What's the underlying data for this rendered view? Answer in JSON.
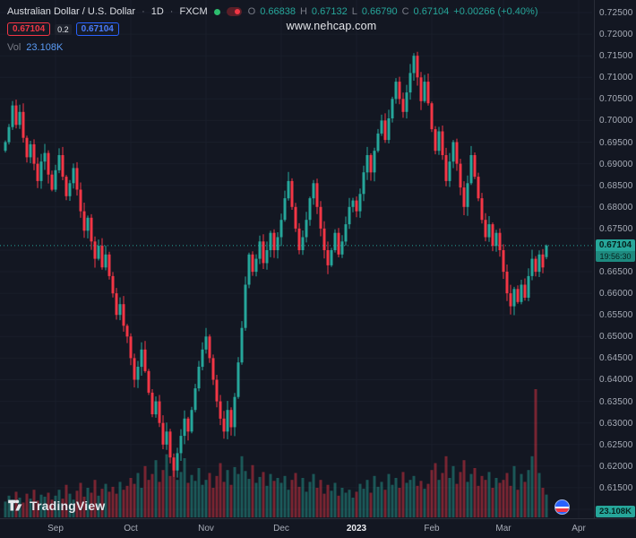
{
  "header": {
    "symbol_title": "Australian Dollar / U.S. Dollar",
    "separator": "·",
    "interval": "1D",
    "exchange": "FXCM",
    "ohlc": {
      "o_label": "O",
      "o": "0.66838",
      "h_label": "H",
      "h": "0.67132",
      "l_label": "L",
      "l": "0.66790",
      "c_label": "C",
      "c": "0.67104",
      "change": "+0.00266 (+0.40%)"
    },
    "sell_price": "0.67104",
    "spread": "0.2",
    "buy_price": "0.67104",
    "vol_label": "Vol",
    "vol_value": "23.108K"
  },
  "watermark": {
    "url_text": "www.nehcap.com"
  },
  "price_axis": {
    "labels": [
      "0.72500",
      "0.72000",
      "0.71500",
      "0.71000",
      "0.70500",
      "0.70000",
      "0.69500",
      "0.69000",
      "0.68500",
      "0.68000",
      "0.67500",
      "0.67000",
      "0.66500",
      "0.66000",
      "0.65500",
      "0.65000",
      "0.64500",
      "0.64000",
      "0.63500",
      "0.63000",
      "0.62500",
      "0.62000",
      "0.61500",
      "0.61000"
    ],
    "current_price": "0.67104",
    "countdown": "19:56:30",
    "volume_badge": "23.108K"
  },
  "time_axis": {
    "labels": [
      {
        "text": "Sep",
        "index": 14,
        "major": false
      },
      {
        "text": "Oct",
        "index": 35,
        "major": false
      },
      {
        "text": "Nov",
        "index": 56,
        "major": false
      },
      {
        "text": "Dec",
        "index": 77,
        "major": false
      },
      {
        "text": "2023",
        "index": 98,
        "major": true
      },
      {
        "text": "Feb",
        "index": 119,
        "major": false
      },
      {
        "text": "Mar",
        "index": 139,
        "major": false
      },
      {
        "text": "Apr",
        "index": 160,
        "major": false
      }
    ]
  },
  "footer": {
    "logo_text": "TradingView"
  },
  "colors": {
    "up": "#26a69a",
    "down": "#f23645",
    "background": "#131722",
    "axis_text": "#a8adb8",
    "ohlc_value": "#26a69a",
    "vol_value": "#5b9cf6",
    "buy_blue": "#2962ff",
    "status_green": "#2dbd6e",
    "pill_maroon": "#5a1f28",
    "grid": "#191e2a"
  },
  "chart_data": {
    "type": "candlestick+volume",
    "title": "Australian Dollar / U.S. Dollar",
    "symbol": "AUDUSD",
    "interval": "1D",
    "exchange": "FXCM",
    "x_range": "Aug 2022 - Mar 2023",
    "ylim": [
      0.61,
      0.725
    ],
    "y_tick_step": 0.005,
    "legend_position": "top-left",
    "grid": "faint",
    "last_candle": {
      "open": 0.66838,
      "high": 0.67132,
      "low": 0.6679,
      "close": 0.67104,
      "volume_k": 23.108
    },
    "first_open": 0.693,
    "closes": [
      0.695,
      0.6985,
      0.7035,
      0.699,
      0.702,
      0.696,
      0.6915,
      0.6945,
      0.69,
      0.686,
      0.6905,
      0.6925,
      0.6875,
      0.684,
      0.6885,
      0.692,
      0.687,
      0.6825,
      0.6855,
      0.689,
      0.684,
      0.679,
      0.6745,
      0.6775,
      0.672,
      0.668,
      0.671,
      0.666,
      0.669,
      0.664,
      0.66,
      0.655,
      0.6575,
      0.6525,
      0.65,
      0.645,
      0.64,
      0.643,
      0.647,
      0.642,
      0.637,
      0.632,
      0.635,
      0.63,
      0.625,
      0.628,
      0.622,
      0.619,
      0.623,
      0.627,
      0.631,
      0.628,
      0.633,
      0.638,
      0.643,
      0.647,
      0.65,
      0.645,
      0.64,
      0.635,
      0.631,
      0.628,
      0.633,
      0.629,
      0.636,
      0.644,
      0.652,
      0.662,
      0.669,
      0.665,
      0.668,
      0.672,
      0.667,
      0.67,
      0.674,
      0.67,
      0.673,
      0.677,
      0.682,
      0.686,
      0.68,
      0.675,
      0.67,
      0.673,
      0.677,
      0.682,
      0.6855,
      0.68,
      0.675,
      0.67,
      0.6665,
      0.67,
      0.674,
      0.669,
      0.672,
      0.676,
      0.68,
      0.6815,
      0.679,
      0.683,
      0.688,
      0.692,
      0.688,
      0.693,
      0.697,
      0.7,
      0.6955,
      0.7005,
      0.705,
      0.709,
      0.705,
      0.702,
      0.7065,
      0.711,
      0.715,
      0.71,
      0.7045,
      0.709,
      0.704,
      0.698,
      0.693,
      0.6975,
      0.692,
      0.686,
      0.6905,
      0.695,
      0.69,
      0.6845,
      0.68,
      0.6855,
      0.692,
      0.687,
      0.682,
      0.677,
      0.673,
      0.676,
      0.671,
      0.674,
      0.67,
      0.665,
      0.66,
      0.657,
      0.661,
      0.658,
      0.662,
      0.659,
      0.664,
      0.668,
      0.665,
      0.669,
      0.666,
      0.67104
    ],
    "volumes_k": [
      16,
      22,
      18,
      26,
      20,
      15,
      24,
      19,
      28,
      17,
      23,
      21,
      25,
      18,
      22,
      28,
      19,
      33,
      24,
      18,
      27,
      35,
      21,
      30,
      25,
      38,
      22,
      29,
      34,
      26,
      31,
      24,
      36,
      28,
      32,
      40,
      34,
      45,
      30,
      52,
      38,
      44,
      58,
      36,
      48,
      64,
      42,
      55,
      38,
      46,
      60,
      35,
      43,
      37,
      50,
      33,
      38,
      45,
      30,
      42,
      55,
      36,
      48,
      33,
      51,
      44,
      62,
      47,
      39,
      53,
      35,
      41,
      46,
      32,
      44,
      37,
      40,
      35,
      42,
      28,
      38,
      45,
      31,
      40,
      26,
      36,
      44,
      30,
      38,
      24,
      33,
      27,
      35,
      22,
      30,
      25,
      28,
      20,
      26,
      34,
      29,
      38,
      25,
      42,
      31,
      36,
      28,
      44,
      33,
      40,
      30,
      46,
      35,
      38,
      42,
      32,
      37,
      29,
      34,
      48,
      55,
      38,
      45,
      62,
      40,
      52,
      34,
      46,
      58,
      36,
      44,
      50,
      32,
      42,
      38,
      46,
      30,
      40,
      35,
      38,
      45,
      32,
      52,
      28,
      44,
      36,
      48,
      62,
      130,
      45,
      30,
      23.108
    ]
  }
}
